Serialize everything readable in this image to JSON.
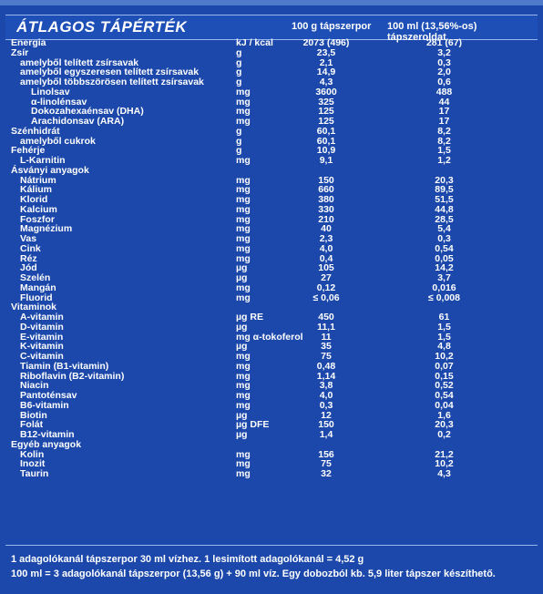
{
  "header": {
    "title": "ÁTLAGOS TÁPÉRTÉK",
    "col1": "100 g tápszerpor",
    "col2": "100 ml (13,56%-os) tápszeroldat"
  },
  "rows": [
    {
      "name": "Energia",
      "indent": 0,
      "unit": "kJ / kcal",
      "v1": "2073 (496)",
      "v2": "281 (67)"
    },
    {
      "name": "Zsír",
      "indent": 0,
      "unit": "g",
      "v1": "23,5",
      "v2": "3,2"
    },
    {
      "name": "amelyből telített zsírsavak",
      "indent": 1,
      "unit": "g",
      "v1": "2,1",
      "v2": "0,3"
    },
    {
      "name": "amelyből egyszeresen telített zsírsavak",
      "indent": 1,
      "unit": "g",
      "v1": "14,9",
      "v2": "2,0"
    },
    {
      "name": "amelyből többszörösen telített zsírsavak",
      "indent": 1,
      "unit": "g",
      "v1": "4,3",
      "v2": "0,6"
    },
    {
      "name": "Linolsav",
      "indent": 2,
      "unit": "mg",
      "v1": "3600",
      "v2": "488"
    },
    {
      "name": "α-linolénsav",
      "indent": 2,
      "unit": "mg",
      "v1": "325",
      "v2": "44"
    },
    {
      "name": "Dokozahexaénsav (DHA)",
      "indent": 2,
      "unit": "mg",
      "v1": "125",
      "v2": "17"
    },
    {
      "name": "Arachidonsav (ARA)",
      "indent": 2,
      "unit": "mg",
      "v1": "125",
      "v2": "17"
    },
    {
      "name": "Szénhidrát",
      "indent": 0,
      "unit": "g",
      "v1": "60,1",
      "v2": "8,2"
    },
    {
      "name": "amelyből cukrok",
      "indent": 1,
      "unit": "g",
      "v1": "60,1",
      "v2": "8,2"
    },
    {
      "name": "Fehérje",
      "indent": 0,
      "unit": "g",
      "v1": "10,9",
      "v2": "1,5"
    },
    {
      "name": "L-Karnitin",
      "indent": 1,
      "unit": "mg",
      "v1": "9,1",
      "v2": "1,2"
    },
    {
      "name": "Ásványi anyagok",
      "indent": 0,
      "unit": "",
      "v1": "",
      "v2": ""
    },
    {
      "name": "Nátrium",
      "indent": 1,
      "unit": "mg",
      "v1": "150",
      "v2": "20,3"
    },
    {
      "name": "Kálium",
      "indent": 1,
      "unit": "mg",
      "v1": "660",
      "v2": "89,5"
    },
    {
      "name": "Klorid",
      "indent": 1,
      "unit": "mg",
      "v1": "380",
      "v2": "51,5"
    },
    {
      "name": "Kalcium",
      "indent": 1,
      "unit": "mg",
      "v1": "330",
      "v2": "44,8"
    },
    {
      "name": "Foszfor",
      "indent": 1,
      "unit": "mg",
      "v1": "210",
      "v2": "28,5"
    },
    {
      "name": "Magnézium",
      "indent": 1,
      "unit": "mg",
      "v1": "40",
      "v2": "5,4"
    },
    {
      "name": "Vas",
      "indent": 1,
      "unit": "mg",
      "v1": "2,3",
      "v2": "0,3"
    },
    {
      "name": "Cink",
      "indent": 1,
      "unit": "mg",
      "v1": "4,0",
      "v2": "0,54"
    },
    {
      "name": "Réz",
      "indent": 1,
      "unit": "mg",
      "v1": "0,4",
      "v2": "0,05"
    },
    {
      "name": "Jód",
      "indent": 1,
      "unit": "µg",
      "v1": "105",
      "v2": "14,2"
    },
    {
      "name": "Szelén",
      "indent": 1,
      "unit": "µg",
      "v1": "27",
      "v2": "3,7"
    },
    {
      "name": "Mangán",
      "indent": 1,
      "unit": "mg",
      "v1": "0,12",
      "v2": "0,016"
    },
    {
      "name": "Fluorid",
      "indent": 1,
      "unit": "mg",
      "v1": "≤ 0,06",
      "v2": "≤ 0,008"
    },
    {
      "name": "Vitaminok",
      "indent": 0,
      "unit": "",
      "v1": "",
      "v2": ""
    },
    {
      "name": "A-vitamin",
      "indent": 1,
      "unit": "µg RE",
      "v1": "450",
      "v2": "61"
    },
    {
      "name": "D-vitamin",
      "indent": 1,
      "unit": "µg",
      "v1": "11,1",
      "v2": "1,5"
    },
    {
      "name": "E-vitamin",
      "indent": 1,
      "unit": "mg α-tokoferol",
      "v1": "11",
      "v2": "1,5"
    },
    {
      "name": "K-vitamin",
      "indent": 1,
      "unit": "µg",
      "v1": "35",
      "v2": "4,8"
    },
    {
      "name": "C-vitamin",
      "indent": 1,
      "unit": "mg",
      "v1": "75",
      "v2": "10,2"
    },
    {
      "name": "Tiamin (B1-vitamin)",
      "indent": 1,
      "unit": "mg",
      "v1": "0,48",
      "v2": "0,07"
    },
    {
      "name": "Riboflavin (B2-vitamin)",
      "indent": 1,
      "unit": "mg",
      "v1": "1,14",
      "v2": "0,15"
    },
    {
      "name": "Niacin",
      "indent": 1,
      "unit": "mg",
      "v1": "3,8",
      "v2": "0,52"
    },
    {
      "name": "Pantoténsav",
      "indent": 1,
      "unit": "mg",
      "v1": "4,0",
      "v2": "0,54"
    },
    {
      "name": "B6-vitamin",
      "indent": 1,
      "unit": "mg",
      "v1": "0,3",
      "v2": "0,04"
    },
    {
      "name": "Biotin",
      "indent": 1,
      "unit": "µg",
      "v1": "12",
      "v2": "1,6"
    },
    {
      "name": "Folát",
      "indent": 1,
      "unit": "µg DFE",
      "v1": "150",
      "v2": "20,3"
    },
    {
      "name": "B12-vitamin",
      "indent": 1,
      "unit": "µg",
      "v1": "1,4",
      "v2": "0,2"
    },
    {
      "name": "Egyéb anyagok",
      "indent": 0,
      "unit": "",
      "v1": "",
      "v2": ""
    },
    {
      "name": "Kolin",
      "indent": 1,
      "unit": "mg",
      "v1": "156",
      "v2": "21,2"
    },
    {
      "name": "Inozit",
      "indent": 1,
      "unit": "mg",
      "v1": "75",
      "v2": "10,2"
    },
    {
      "name": "Taurin",
      "indent": 1,
      "unit": "mg",
      "v1": "32",
      "v2": "4,3"
    }
  ],
  "footer": {
    "line1": "1 adagolókanál tápszerpor 30 ml vízhez. 1 lesimított adagolókanál = 4,52 g",
    "line2": "100 ml = 3 adagolókanál tápszerpor (13,56 g) + 90 ml víz. Egy dobozból kb. 5,9 liter tápszer készíthető."
  }
}
